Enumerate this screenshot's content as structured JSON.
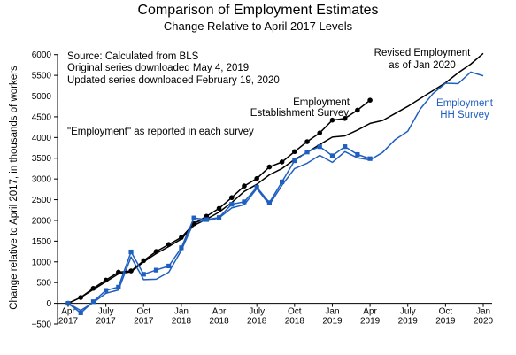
{
  "chart_data": {
    "type": "line",
    "title": "Comparison of Employment Estimates",
    "subtitle": "Change Relative to April 2017 Levels",
    "ylabel": "Change relative to April 2017, in thousands of workers",
    "xlabel": "",
    "ylim": [
      -500,
      6250
    ],
    "yticks": [
      -500,
      0,
      500,
      1000,
      1500,
      2000,
      2500,
      3000,
      3500,
      4000,
      4500,
      5000,
      5500,
      6000
    ],
    "x_start": "2017-04",
    "x_end": "2020-01",
    "xticks": [
      {
        "month": "2017-04",
        "line1": "Apr",
        "line2": "2017"
      },
      {
        "month": "2017-07",
        "line1": "July",
        "line2": "2017"
      },
      {
        "month": "2017-10",
        "line1": "Oct",
        "line2": "2017"
      },
      {
        "month": "2018-01",
        "line1": "Jan",
        "line2": "2018"
      },
      {
        "month": "2018-04",
        "line1": "Apr",
        "line2": "2018"
      },
      {
        "month": "2018-07",
        "line1": "July",
        "line2": "2018"
      },
      {
        "month": "2018-10",
        "line1": "Oct",
        "line2": "2018"
      },
      {
        "month": "2019-01",
        "line1": "Jan",
        "line2": "2019"
      },
      {
        "month": "2019-04",
        "line1": "Apr",
        "line2": "2019"
      },
      {
        "month": "2019-07",
        "line1": "July",
        "line2": "2019"
      },
      {
        "month": "2019-10",
        "line1": "Oct",
        "line2": "2019"
      },
      {
        "month": "2020-01",
        "line1": "Jan",
        "line2": "2020"
      }
    ],
    "grid": false,
    "annotations": {
      "source_1": "Source:  Calculated from BLS",
      "source_2": "Original series downloaded May 4, 2019",
      "source_3": "Updated series downloaded February 19, 2020",
      "note": "\"Employment\" as reported in each survey",
      "revised_1": "Revised Employment",
      "revised_2": "as of Jan 2020",
      "est_1": "Employment",
      "est_2": "Establishment Survey",
      "hh_1": "Employment",
      "hh_2": "HH Survey"
    },
    "series": [
      {
        "name": "Establishment Survey (original)",
        "color": "#000000",
        "marker": "circle",
        "x": [
          "2017-04",
          "2017-05",
          "2017-06",
          "2017-07",
          "2017-08",
          "2017-09",
          "2017-10",
          "2017-11",
          "2017-12",
          "2018-01",
          "2018-02",
          "2018-03",
          "2018-04",
          "2018-05",
          "2018-06",
          "2018-07",
          "2018-08",
          "2018-09",
          "2018-10",
          "2018-11",
          "2018-12",
          "2019-01",
          "2019-02",
          "2019-03",
          "2019-04"
        ],
        "values": [
          0,
          140,
          360,
          560,
          750,
          780,
          1030,
          1250,
          1420,
          1590,
          1920,
          2100,
          2290,
          2550,
          2830,
          3010,
          3290,
          3410,
          3660,
          3900,
          4110,
          4420,
          4460,
          4660,
          4900
        ]
      },
      {
        "name": "Household Survey (original)",
        "color": "#1f5fbf",
        "marker": "square",
        "x": [
          "2017-04",
          "2017-05",
          "2017-06",
          "2017-07",
          "2017-08",
          "2017-09",
          "2017-10",
          "2017-11",
          "2017-12",
          "2018-01",
          "2018-02",
          "2018-03",
          "2018-04",
          "2018-05",
          "2018-06",
          "2018-07",
          "2018-08",
          "2018-09",
          "2018-10",
          "2018-11",
          "2018-12",
          "2019-01",
          "2019-02",
          "2019-03",
          "2019-04"
        ],
        "values": [
          0,
          -230,
          40,
          310,
          390,
          1240,
          700,
          800,
          900,
          1340,
          2060,
          2020,
          2070,
          2390,
          2450,
          2800,
          2430,
          2930,
          3440,
          3650,
          3780,
          3560,
          3780,
          3590,
          3490
        ]
      },
      {
        "name": "Revised Employment as of Jan 2020",
        "color": "#000000",
        "marker": "none",
        "x": [
          "2017-04",
          "2017-05",
          "2017-06",
          "2017-07",
          "2017-08",
          "2017-09",
          "2017-10",
          "2017-11",
          "2017-12",
          "2018-01",
          "2018-02",
          "2018-03",
          "2018-04",
          "2018-05",
          "2018-06",
          "2018-07",
          "2018-08",
          "2018-09",
          "2018-10",
          "2018-11",
          "2018-12",
          "2019-01",
          "2019-02",
          "2019-03",
          "2019-04",
          "2019-05",
          "2019-06",
          "2019-07",
          "2019-08",
          "2019-09",
          "2019-10",
          "2019-11",
          "2019-12",
          "2020-01"
        ],
        "values": [
          0,
          140,
          330,
          520,
          710,
          760,
          1000,
          1200,
          1370,
          1550,
          1880,
          2030,
          2200,
          2430,
          2700,
          2870,
          3100,
          3250,
          3470,
          3640,
          3830,
          4010,
          4040,
          4180,
          4340,
          4410,
          4580,
          4750,
          4940,
          5130,
          5320,
          5560,
          5770,
          6030
        ]
      },
      {
        "name": "Revised Household Survey",
        "color": "#1f5fbf",
        "marker": "none",
        "x": [
          "2017-04",
          "2017-05",
          "2017-06",
          "2017-07",
          "2017-08",
          "2017-09",
          "2017-10",
          "2017-11",
          "2017-12",
          "2018-01",
          "2018-02",
          "2018-03",
          "2018-04",
          "2018-05",
          "2018-06",
          "2018-07",
          "2018-08",
          "2018-09",
          "2018-10",
          "2018-11",
          "2018-12",
          "2019-01",
          "2019-02",
          "2019-03",
          "2019-04",
          "2019-05",
          "2019-06",
          "2019-07",
          "2019-08",
          "2019-09",
          "2019-10",
          "2019-11",
          "2019-12",
          "2020-01"
        ],
        "values": [
          0,
          -170,
          20,
          240,
          320,
          1120,
          570,
          580,
          750,
          1280,
          1960,
          1990,
          2060,
          2300,
          2380,
          2770,
          2380,
          2850,
          3250,
          3380,
          3570,
          3400,
          3660,
          3510,
          3460,
          3640,
          3950,
          4150,
          4690,
          5060,
          5310,
          5300,
          5580,
          5490
        ]
      }
    ]
  }
}
